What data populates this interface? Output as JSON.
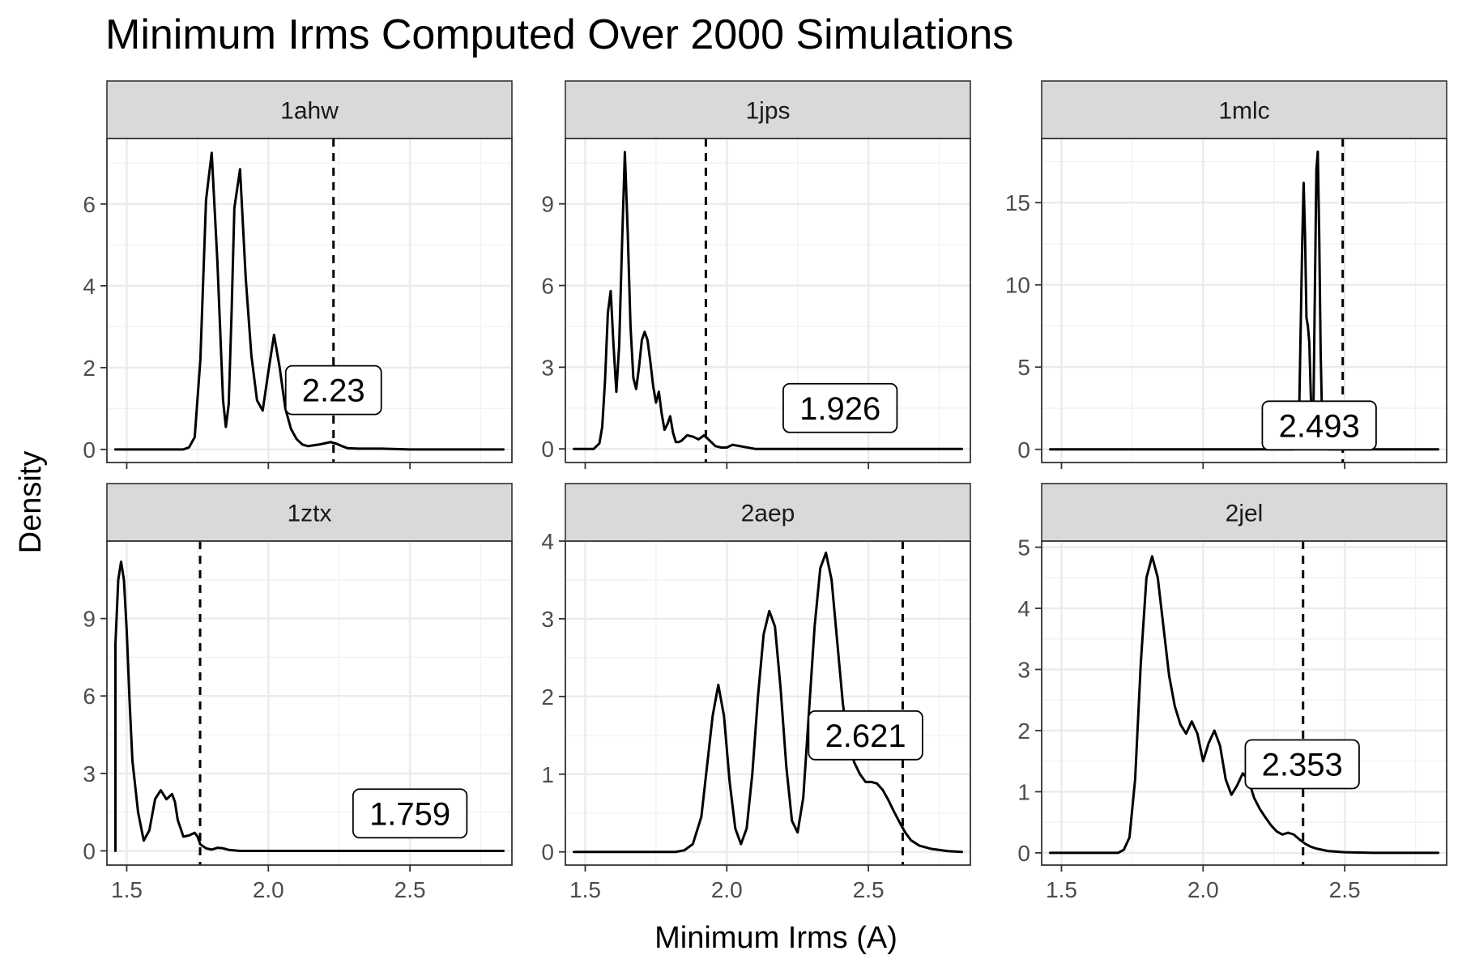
{
  "chart_data": {
    "type": "line",
    "title": "Minimum Irms Computed Over 2000 Simulations",
    "xlabel": "Minimum Irms (A)",
    "ylabel": "Density",
    "xlim": [
      1.43,
      2.86
    ],
    "x_ticks": [
      1.5,
      2.0,
      2.5
    ],
    "x_tick_labels": [
      "1.5",
      "2.0",
      "2.5"
    ],
    "grid": true,
    "facets": [
      {
        "name": "1ahw",
        "ylim": [
          -0.32,
          7.6
        ],
        "y_ticks": [
          0,
          2,
          4,
          6
        ],
        "y_tick_labels": [
          "0",
          "2",
          "4",
          "6"
        ],
        "threshold": 2.23,
        "label": "2.23",
        "label_pos": [
          2.23,
          1.45
        ],
        "curve": {
          "x": [
            1.46,
            1.7,
            1.72,
            1.74,
            1.76,
            1.78,
            1.8,
            1.82,
            1.84,
            1.85,
            1.86,
            1.87,
            1.88,
            1.9,
            1.92,
            1.94,
            1.96,
            1.98,
            2.0,
            2.02,
            2.04,
            2.06,
            2.08,
            2.1,
            2.12,
            2.14,
            2.16,
            2.18,
            2.2,
            2.22,
            2.24,
            2.26,
            2.28,
            2.32,
            2.4,
            2.5,
            2.83
          ],
          "y": [
            0,
            0,
            0.05,
            0.3,
            2.2,
            6.1,
            7.25,
            4.6,
            1.2,
            0.55,
            1.1,
            3.3,
            5.9,
            6.85,
            4.2,
            2.3,
            1.2,
            0.95,
            1.9,
            2.8,
            2.0,
            1.0,
            0.5,
            0.25,
            0.12,
            0.08,
            0.1,
            0.12,
            0.15,
            0.18,
            0.14,
            0.08,
            0.03,
            0.02,
            0.02,
            0,
            0
          ]
        }
      },
      {
        "name": "1jps",
        "ylim": [
          -0.5,
          11.4
        ],
        "y_ticks": [
          0,
          3,
          6,
          9
        ],
        "y_tick_labels": [
          "0",
          "3",
          "6",
          "9"
        ],
        "threshold": 1.926,
        "label": "1.926",
        "label_pos": [
          2.4,
          1.5
        ],
        "curve": {
          "x": [
            1.46,
            1.53,
            1.55,
            1.56,
            1.57,
            1.58,
            1.59,
            1.6,
            1.61,
            1.62,
            1.63,
            1.64,
            1.65,
            1.66,
            1.67,
            1.68,
            1.69,
            1.7,
            1.71,
            1.72,
            1.73,
            1.74,
            1.75,
            1.76,
            1.77,
            1.78,
            1.79,
            1.8,
            1.81,
            1.82,
            1.83,
            1.84,
            1.85,
            1.86,
            1.88,
            1.9,
            1.92,
            1.94,
            1.96,
            1.98,
            2.0,
            2.02,
            2.1,
            2.83
          ],
          "y": [
            0,
            0,
            0.2,
            0.8,
            2.5,
            5.0,
            5.8,
            3.8,
            2.1,
            3.8,
            7.5,
            10.9,
            8.0,
            4.5,
            2.6,
            2.2,
            3.0,
            4.0,
            4.3,
            4.0,
            3.2,
            2.3,
            1.7,
            2.1,
            1.3,
            0.7,
            0.9,
            1.2,
            0.6,
            0.25,
            0.25,
            0.3,
            0.4,
            0.5,
            0.45,
            0.35,
            0.5,
            0.3,
            0.1,
            0.05,
            0.05,
            0.15,
            0,
            0
          ]
        }
      },
      {
        "name": "1mlc",
        "ylim": [
          -0.8,
          18.9
        ],
        "y_ticks": [
          0,
          5,
          10,
          15
        ],
        "y_tick_labels": [
          "0",
          "5",
          "10",
          "15"
        ],
        "threshold": 2.493,
        "label": "2.493",
        "label_pos": [
          2.41,
          1.45
        ],
        "curve": {
          "x": [
            1.46,
            2.32,
            2.33,
            2.34,
            2.35,
            2.355,
            2.36,
            2.365,
            2.37,
            2.375,
            2.38,
            2.385,
            2.39,
            2.395,
            2.4,
            2.405,
            2.41,
            2.415,
            2.42,
            2.425,
            2.43,
            2.44,
            2.83
          ],
          "y": [
            0,
            0,
            0.2,
            3.0,
            12.5,
            16.2,
            13.0,
            8.0,
            7.5,
            6.5,
            3.5,
            0.8,
            3.0,
            10.0,
            17.0,
            18.1,
            13.0,
            6.0,
            2.0,
            0.6,
            0.1,
            0,
            0
          ]
        }
      },
      {
        "name": "1ztx",
        "ylim": [
          -0.55,
          12.0
        ],
        "y_ticks": [
          0,
          3,
          6,
          9
        ],
        "y_tick_labels": [
          "0",
          "3",
          "6",
          "9"
        ],
        "threshold": 1.759,
        "label": "1.759",
        "label_pos": [
          2.5,
          1.45
        ],
        "curve": {
          "x": [
            1.46,
            1.46,
            1.47,
            1.48,
            1.49,
            1.5,
            1.51,
            1.52,
            1.54,
            1.56,
            1.58,
            1.6,
            1.62,
            1.64,
            1.66,
            1.67,
            1.68,
            1.7,
            1.72,
            1.74,
            1.75,
            1.76,
            1.78,
            1.8,
            1.82,
            1.84,
            1.86,
            1.9,
            2.83
          ],
          "y": [
            0,
            8.0,
            10.5,
            11.2,
            10.5,
            8.5,
            5.8,
            3.5,
            1.5,
            0.4,
            0.8,
            2.0,
            2.35,
            2.0,
            2.2,
            1.9,
            1.2,
            0.55,
            0.6,
            0.7,
            0.55,
            0.25,
            0.1,
            0.05,
            0.12,
            0.1,
            0.04,
            0,
            0
          ]
        }
      },
      {
        "name": "2aep",
        "ylim": [
          -0.17,
          4.0
        ],
        "y_ticks": [
          0,
          1,
          2,
          3,
          4
        ],
        "y_tick_labels": [
          "0",
          "1",
          "2",
          "3",
          "4"
        ],
        "threshold": 2.621,
        "label": "2.621",
        "label_pos": [
          2.49,
          1.5
        ],
        "curve": {
          "x": [
            1.46,
            1.82,
            1.85,
            1.88,
            1.91,
            1.93,
            1.95,
            1.97,
            1.99,
            2.01,
            2.03,
            2.05,
            2.07,
            2.09,
            2.11,
            2.13,
            2.15,
            2.17,
            2.19,
            2.21,
            2.23,
            2.25,
            2.27,
            2.29,
            2.31,
            2.33,
            2.35,
            2.37,
            2.39,
            2.41,
            2.43,
            2.45,
            2.47,
            2.49,
            2.51,
            2.53,
            2.55,
            2.57,
            2.59,
            2.61,
            2.63,
            2.65,
            2.68,
            2.72,
            2.78,
            2.83
          ],
          "y": [
            0,
            0,
            0.02,
            0.1,
            0.45,
            1.1,
            1.75,
            2.15,
            1.75,
            0.9,
            0.3,
            0.1,
            0.3,
            1.0,
            2.0,
            2.8,
            3.1,
            2.9,
            2.1,
            1.1,
            0.4,
            0.25,
            0.7,
            1.8,
            2.9,
            3.65,
            3.85,
            3.5,
            2.7,
            1.9,
            1.4,
            1.15,
            1.0,
            0.9,
            0.9,
            0.88,
            0.8,
            0.67,
            0.52,
            0.38,
            0.25,
            0.15,
            0.08,
            0.04,
            0.01,
            0
          ]
        }
      },
      {
        "name": "2jel",
        "ylim": [
          -0.2,
          5.1
        ],
        "y_ticks": [
          0,
          1,
          2,
          3,
          4,
          5
        ],
        "y_tick_labels": [
          "0",
          "1",
          "2",
          "3",
          "4",
          "5"
        ],
        "threshold": 2.353,
        "label": "2.353",
        "label_pos": [
          2.35,
          1.45
        ],
        "curve": {
          "x": [
            1.46,
            1.7,
            1.72,
            1.74,
            1.76,
            1.78,
            1.8,
            1.82,
            1.84,
            1.86,
            1.88,
            1.9,
            1.92,
            1.94,
            1.96,
            1.98,
            2.0,
            2.02,
            2.04,
            2.06,
            2.08,
            2.1,
            2.12,
            2.14,
            2.16,
            2.18,
            2.2,
            2.22,
            2.24,
            2.26,
            2.28,
            2.3,
            2.32,
            2.34,
            2.36,
            2.38,
            2.4,
            2.44,
            2.5,
            2.6,
            2.83
          ],
          "y": [
            0,
            0,
            0.05,
            0.25,
            1.2,
            3.1,
            4.5,
            4.85,
            4.5,
            3.7,
            2.9,
            2.4,
            2.1,
            1.95,
            2.15,
            1.95,
            1.5,
            1.8,
            2.0,
            1.75,
            1.2,
            0.95,
            1.1,
            1.3,
            1.2,
            0.9,
            0.72,
            0.58,
            0.45,
            0.35,
            0.3,
            0.33,
            0.3,
            0.22,
            0.15,
            0.1,
            0.07,
            0.03,
            0.01,
            0,
            0
          ]
        }
      }
    ]
  }
}
